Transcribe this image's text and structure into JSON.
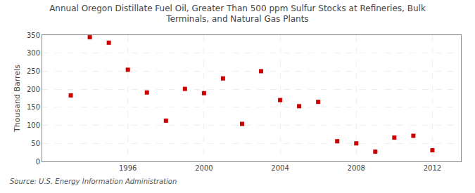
{
  "chart_data": {
    "type": "scatter",
    "title": "Annual Oregon Distillate Fuel Oil, Greater Than 500 ppm Sulfur Stocks at Refineries, Bulk\nTerminals, and Natural Gas Plants",
    "ylabel": "Thousand Barrels",
    "annotations": [
      "Source: U.S. Energy Information Administration"
    ],
    "x": [
      1993,
      1994,
      1995,
      1996,
      1997,
      1998,
      1999,
      2000,
      2001,
      2002,
      2003,
      2004,
      2005,
      2006,
      2007,
      2008,
      2009,
      2010,
      2011,
      2012
    ],
    "values": [
      183,
      344,
      329,
      254,
      191,
      113,
      201,
      189,
      230,
      104,
      250,
      170,
      153,
      165,
      56,
      50,
      27,
      66,
      71,
      31
    ],
    "color": "#cc0000",
    "marker": "square",
    "xlim": [
      1991.5,
      2013.5
    ],
    "ylim": [
      0,
      350
    ],
    "xticks": [
      1996,
      2000,
      2004,
      2008,
      2012
    ],
    "yticks": [
      0,
      50,
      100,
      150,
      200,
      250,
      300,
      350
    ],
    "grid": true
  }
}
